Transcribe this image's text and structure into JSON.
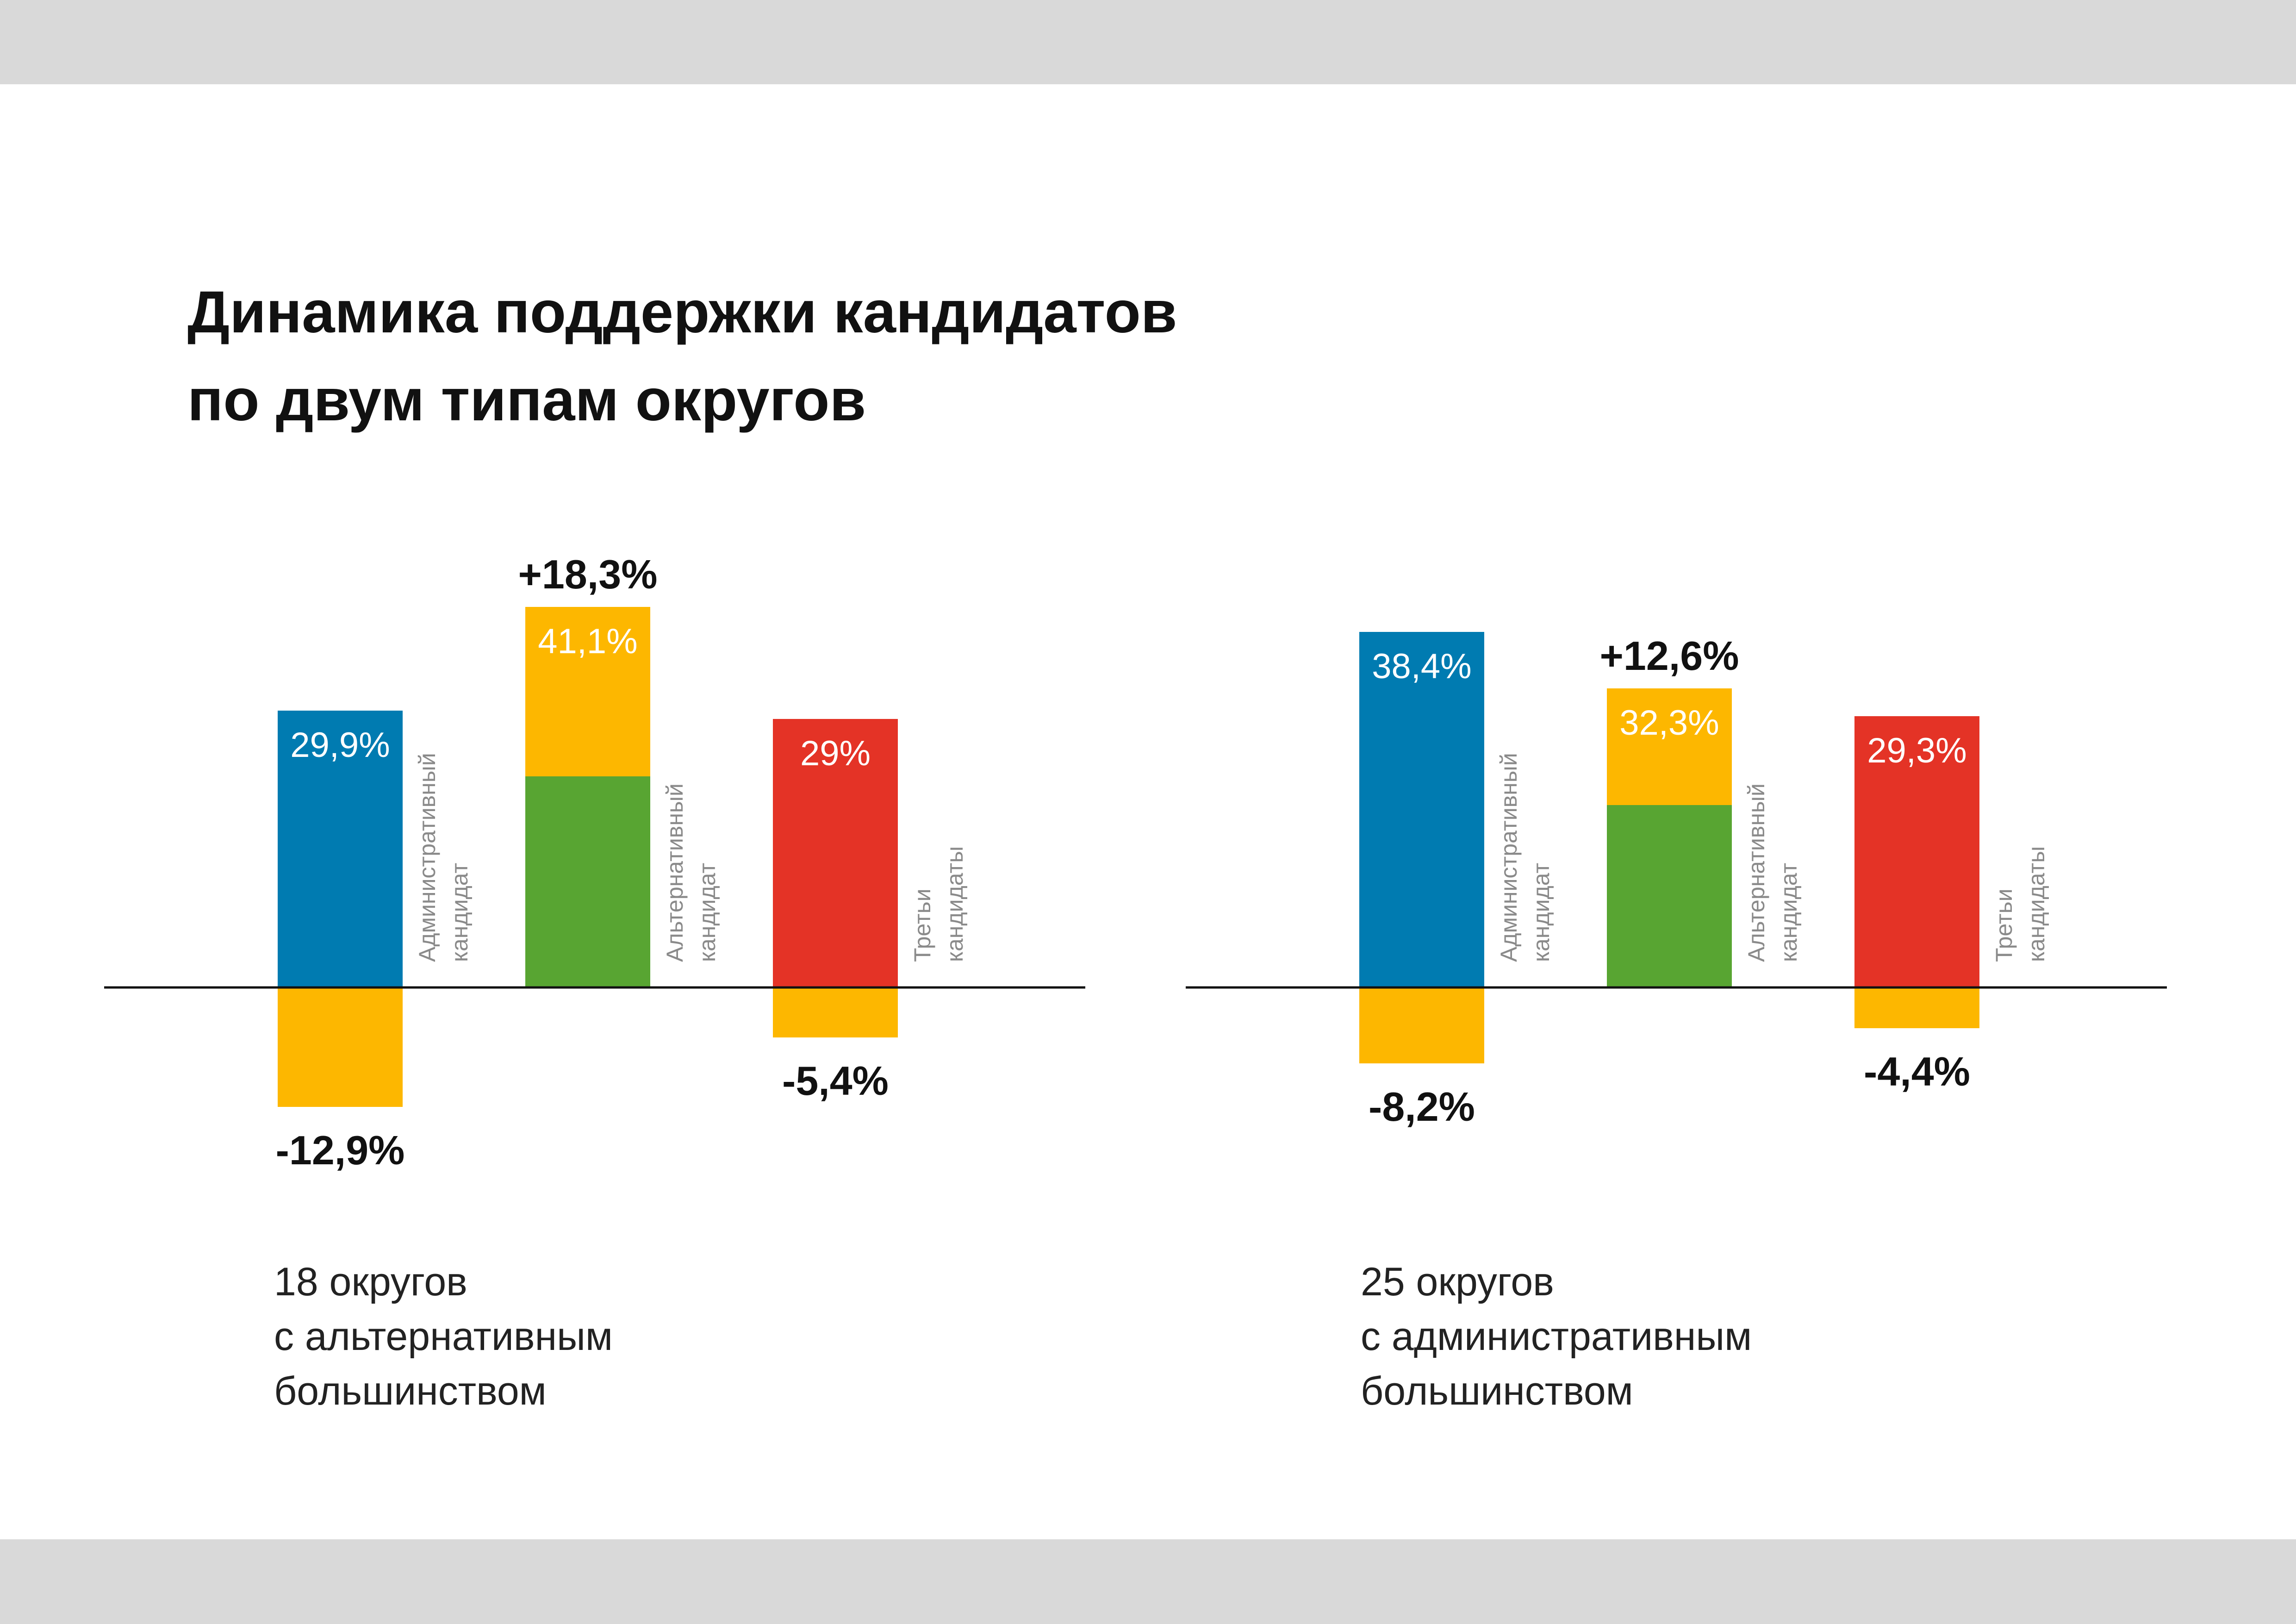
{
  "title_lines": [
    "Динамика поддержки кандидатов",
    "по двум типам округов"
  ],
  "colors": {
    "administrative": "#007bb1",
    "alternative": "#58a532",
    "third": "#e43326",
    "change": "#fdb700",
    "axis": "#111111",
    "page_band": "#d9d9d9"
  },
  "chart_data": [
    {
      "type": "bar",
      "caption_lines": [
        "18 округов",
        "с альтернативным",
        "большинством"
      ],
      "categories": [
        "Административный кандидат",
        "Альтернативный кандидат",
        "Третьи кандидаты"
      ],
      "category_label_lines": [
        [
          "Административный",
          "кандидат"
        ],
        [
          "Альтернативный",
          "кандидат"
        ],
        [
          "Третьи",
          "кандидаты"
        ]
      ],
      "series": [
        {
          "values": [
            29.9,
            41.1,
            29.0
          ],
          "labels": [
            "29,9%",
            "41,1%",
            "29%"
          ]
        },
        {
          "values": [
            -12.9,
            18.3,
            -5.4
          ],
          "labels": [
            "-12,9%",
            "+18,3%",
            "-5,4%"
          ]
        }
      ]
    },
    {
      "type": "bar",
      "caption_lines": [
        "25 округов",
        "с административным",
        "большинством"
      ],
      "categories": [
        "Административный кандидат",
        "Альтернативный кандидат",
        "Третьи кандидаты"
      ],
      "category_label_lines": [
        [
          "Административный",
          "кандидат"
        ],
        [
          "Альтернативный",
          "кандидат"
        ],
        [
          "Третьи",
          "кандидаты"
        ]
      ],
      "series": [
        {
          "values": [
            38.4,
            32.3,
            29.3
          ],
          "labels": [
            "38,4%",
            "32,3%",
            "29,3%"
          ]
        },
        {
          "values": [
            -8.2,
            12.6,
            -4.4
          ],
          "labels": [
            "-8,2%",
            "+12,6%",
            "-4,4%"
          ]
        }
      ]
    }
  ]
}
